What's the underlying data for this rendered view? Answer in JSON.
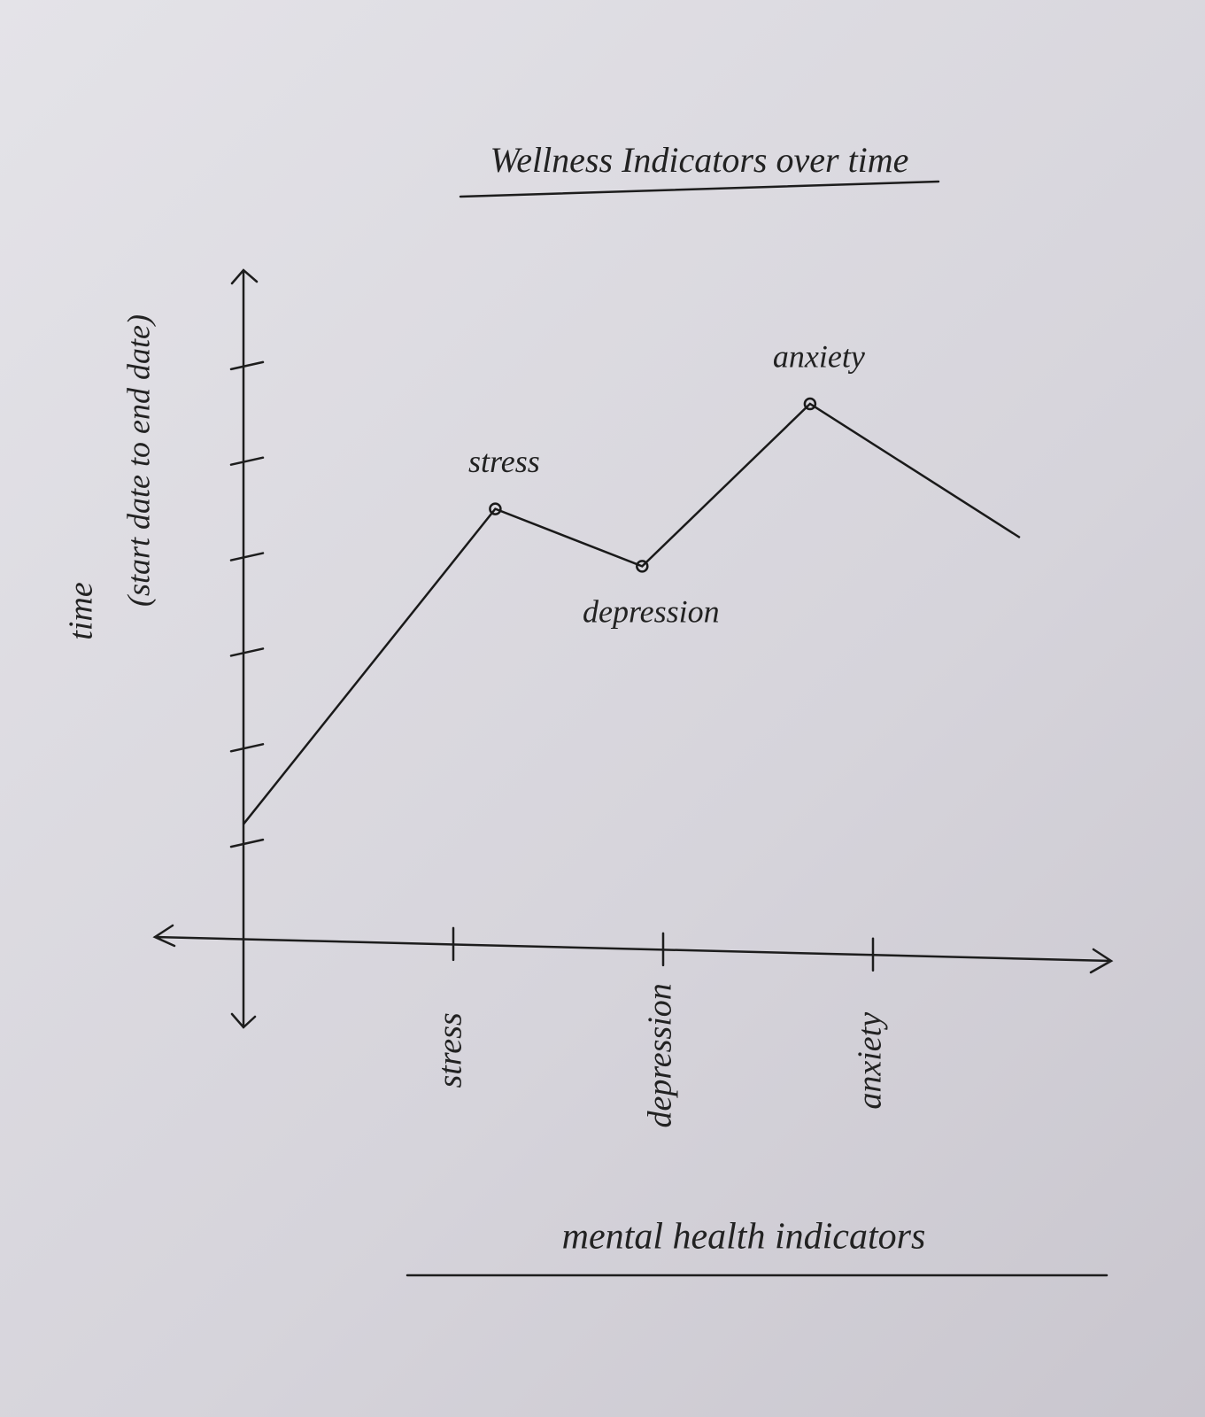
{
  "chart_data": {
    "type": "line",
    "title": "Wellness Indicators over time",
    "y_label": "time",
    "y_sublabel": "(start date to end date)",
    "x_label": "mental health indicators",
    "x": [
      0,
      1.2,
      1.9,
      2.7,
      3.7
    ],
    "series": [
      {
        "values": [
          1.2,
          4.5,
          3.9,
          5.6,
          4.2
        ],
        "color": "#1a1a1a",
        "point_labels": [
          null,
          "stress",
          "depression",
          "anxiety",
          null
        ]
      }
    ],
    "xlim": [
      0,
      4
    ],
    "xticks": [
      {
        "value": 1,
        "label": "stress"
      },
      {
        "value": 2,
        "label": "depression"
      },
      {
        "value": 3,
        "label": "anxiety"
      }
    ],
    "ylim": [
      0,
      7
    ],
    "yticks": [
      1,
      2,
      3,
      4,
      5,
      6
    ],
    "grid": false
  }
}
